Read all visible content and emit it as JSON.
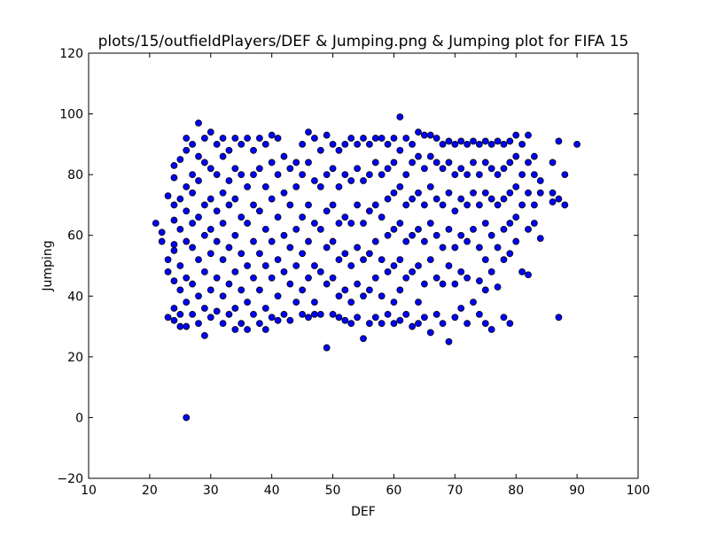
{
  "chart_data": {
    "type": "scatter",
    "title": "plots/15/outfieldPlayers/DEF & Jumping.png & Jumping plot for FIFA 15",
    "xlabel": "DEF",
    "ylabel": "Jumping",
    "xlim": [
      10,
      100
    ],
    "ylim": [
      -20,
      120
    ],
    "xticks": [
      10,
      20,
      30,
      40,
      50,
      60,
      70,
      80,
      90,
      100
    ],
    "yticks": [
      -20,
      0,
      20,
      40,
      60,
      80,
      100,
      120
    ],
    "grid": false,
    "legend": "none",
    "marker_color": "#0000ff",
    "marker_edge_color": "#000000",
    "points": [
      [
        21,
        64
      ],
      [
        22,
        61
      ],
      [
        22,
        58
      ],
      [
        23,
        73
      ],
      [
        23,
        52
      ],
      [
        23,
        48
      ],
      [
        23,
        33
      ],
      [
        24,
        83
      ],
      [
        24,
        79
      ],
      [
        24,
        70
      ],
      [
        24,
        65
      ],
      [
        24,
        57
      ],
      [
        24,
        55
      ],
      [
        24,
        45
      ],
      [
        24,
        36
      ],
      [
        24,
        32
      ],
      [
        25,
        85
      ],
      [
        25,
        72
      ],
      [
        25,
        62
      ],
      [
        25,
        50
      ],
      [
        25,
        42
      ],
      [
        25,
        34
      ],
      [
        25,
        30
      ],
      [
        26,
        92
      ],
      [
        26,
        88
      ],
      [
        26,
        76
      ],
      [
        26,
        68
      ],
      [
        26,
        58
      ],
      [
        26,
        46
      ],
      [
        26,
        38
      ],
      [
        26,
        30
      ],
      [
        26,
        0
      ],
      [
        27,
        90
      ],
      [
        27,
        80
      ],
      [
        27,
        74
      ],
      [
        27,
        64
      ],
      [
        27,
        56
      ],
      [
        27,
        44
      ],
      [
        27,
        34
      ],
      [
        28,
        97
      ],
      [
        28,
        86
      ],
      [
        28,
        78
      ],
      [
        28,
        66
      ],
      [
        28,
        52
      ],
      [
        28,
        40
      ],
      [
        28,
        31
      ],
      [
        29,
        92
      ],
      [
        29,
        84
      ],
      [
        29,
        70
      ],
      [
        29,
        60
      ],
      [
        29,
        48
      ],
      [
        29,
        36
      ],
      [
        29,
        27
      ],
      [
        30,
        94
      ],
      [
        30,
        82
      ],
      [
        30,
        72
      ],
      [
        30,
        62
      ],
      [
        30,
        54
      ],
      [
        30,
        42
      ],
      [
        30,
        33
      ],
      [
        31,
        90
      ],
      [
        31,
        80
      ],
      [
        31,
        68
      ],
      [
        31,
        58
      ],
      [
        31,
        46
      ],
      [
        31,
        35
      ],
      [
        32,
        92
      ],
      [
        32,
        86
      ],
      [
        32,
        74
      ],
      [
        32,
        64
      ],
      [
        32,
        52
      ],
      [
        32,
        40
      ],
      [
        32,
        31
      ],
      [
        33,
        88
      ],
      [
        33,
        78
      ],
      [
        33,
        70
      ],
      [
        33,
        56
      ],
      [
        33,
        44
      ],
      [
        33,
        34
      ],
      [
        34,
        92
      ],
      [
        34,
        82
      ],
      [
        34,
        72
      ],
      [
        34,
        60
      ],
      [
        34,
        48
      ],
      [
        34,
        36
      ],
      [
        34,
        29
      ],
      [
        35,
        90
      ],
      [
        35,
        80
      ],
      [
        35,
        66
      ],
      [
        35,
        54
      ],
      [
        35,
        42
      ],
      [
        35,
        31
      ],
      [
        36,
        92
      ],
      [
        36,
        76
      ],
      [
        36,
        64
      ],
      [
        36,
        50
      ],
      [
        36,
        38
      ],
      [
        36,
        29
      ],
      [
        37,
        88
      ],
      [
        37,
        80
      ],
      [
        37,
        70
      ],
      [
        37,
        58
      ],
      [
        37,
        46
      ],
      [
        37,
        34
      ],
      [
        38,
        92
      ],
      [
        38,
        82
      ],
      [
        38,
        68
      ],
      [
        38,
        54
      ],
      [
        38,
        42
      ],
      [
        38,
        31
      ],
      [
        39,
        90
      ],
      [
        39,
        76
      ],
      [
        39,
        62
      ],
      [
        39,
        50
      ],
      [
        39,
        36
      ],
      [
        39,
        29
      ],
      [
        40,
        93
      ],
      [
        40,
        84
      ],
      [
        40,
        72
      ],
      [
        40,
        58
      ],
      [
        40,
        46
      ],
      [
        40,
        33
      ],
      [
        41,
        92
      ],
      [
        41,
        80
      ],
      [
        41,
        66
      ],
      [
        41,
        52
      ],
      [
        41,
        40
      ],
      [
        41,
        32
      ],
      [
        42,
        86
      ],
      [
        42,
        74
      ],
      [
        42,
        60
      ],
      [
        42,
        48
      ],
      [
        42,
        34
      ],
      [
        43,
        82
      ],
      [
        43,
        70
      ],
      [
        43,
        56
      ],
      [
        43,
        44
      ],
      [
        43,
        32
      ],
      [
        44,
        84
      ],
      [
        44,
        76
      ],
      [
        44,
        62
      ],
      [
        44,
        50
      ],
      [
        44,
        38
      ],
      [
        45,
        90
      ],
      [
        45,
        80
      ],
      [
        45,
        66
      ],
      [
        45,
        54
      ],
      [
        45,
        42
      ],
      [
        45,
        34
      ],
      [
        46,
        94
      ],
      [
        46,
        84
      ],
      [
        46,
        70
      ],
      [
        46,
        58
      ],
      [
        46,
        46
      ],
      [
        46,
        33
      ],
      [
        47,
        92
      ],
      [
        47,
        78
      ],
      [
        47,
        64
      ],
      [
        47,
        50
      ],
      [
        47,
        38
      ],
      [
        47,
        34
      ],
      [
        48,
        88
      ],
      [
        48,
        76
      ],
      [
        48,
        62
      ],
      [
        48,
        48
      ],
      [
        48,
        34
      ],
      [
        49,
        93
      ],
      [
        49,
        80
      ],
      [
        49,
        68
      ],
      [
        49,
        56
      ],
      [
        49,
        44
      ],
      [
        49,
        23
      ],
      [
        50,
        90
      ],
      [
        50,
        82
      ],
      [
        50,
        70
      ],
      [
        50,
        58
      ],
      [
        50,
        46
      ],
      [
        50,
        34
      ],
      [
        51,
        88
      ],
      [
        51,
        76
      ],
      [
        51,
        64
      ],
      [
        51,
        52
      ],
      [
        51,
        40
      ],
      [
        51,
        33
      ],
      [
        52,
        90
      ],
      [
        52,
        80
      ],
      [
        52,
        66
      ],
      [
        52,
        54
      ],
      [
        52,
        42
      ],
      [
        52,
        32
      ],
      [
        53,
        92
      ],
      [
        53,
        78
      ],
      [
        53,
        64
      ],
      [
        53,
        50
      ],
      [
        53,
        38
      ],
      [
        53,
        31
      ],
      [
        54,
        90
      ],
      [
        54,
        82
      ],
      [
        54,
        70
      ],
      [
        54,
        56
      ],
      [
        54,
        44
      ],
      [
        54,
        33
      ],
      [
        55,
        92
      ],
      [
        55,
        78
      ],
      [
        55,
        64
      ],
      [
        55,
        52
      ],
      [
        55,
        40
      ],
      [
        55,
        26
      ],
      [
        56,
        90
      ],
      [
        56,
        80
      ],
      [
        56,
        68
      ],
      [
        56,
        54
      ],
      [
        56,
        42
      ],
      [
        56,
        31
      ],
      [
        57,
        92
      ],
      [
        57,
        84
      ],
      [
        57,
        70
      ],
      [
        57,
        58
      ],
      [
        57,
        46
      ],
      [
        57,
        33
      ],
      [
        58,
        92
      ],
      [
        58,
        80
      ],
      [
        58,
        66
      ],
      [
        58,
        52
      ],
      [
        58,
        40
      ],
      [
        58,
        31
      ],
      [
        59,
        90
      ],
      [
        59,
        82
      ],
      [
        59,
        72
      ],
      [
        59,
        60
      ],
      [
        59,
        48
      ],
      [
        59,
        34
      ],
      [
        60,
        92
      ],
      [
        60,
        84
      ],
      [
        60,
        74
      ],
      [
        60,
        62
      ],
      [
        60,
        50
      ],
      [
        60,
        38
      ],
      [
        60,
        31
      ],
      [
        61,
        99
      ],
      [
        61,
        88
      ],
      [
        61,
        76
      ],
      [
        61,
        64
      ],
      [
        61,
        52
      ],
      [
        61,
        42
      ],
      [
        61,
        32
      ],
      [
        62,
        92
      ],
      [
        62,
        80
      ],
      [
        62,
        70
      ],
      [
        62,
        58
      ],
      [
        62,
        46
      ],
      [
        62,
        34
      ],
      [
        63,
        90
      ],
      [
        63,
        84
      ],
      [
        63,
        72
      ],
      [
        63,
        60
      ],
      [
        63,
        48
      ],
      [
        63,
        30
      ],
      [
        64,
        94
      ],
      [
        64,
        86
      ],
      [
        64,
        74
      ],
      [
        64,
        62
      ],
      [
        64,
        50
      ],
      [
        64,
        38
      ],
      [
        64,
        31
      ],
      [
        65,
        93
      ],
      [
        65,
        82
      ],
      [
        65,
        70
      ],
      [
        65,
        58
      ],
      [
        65,
        44
      ],
      [
        65,
        33
      ],
      [
        66,
        93
      ],
      [
        66,
        86
      ],
      [
        66,
        76
      ],
      [
        66,
        64
      ],
      [
        66,
        52
      ],
      [
        66,
        28
      ],
      [
        67,
        92
      ],
      [
        67,
        84
      ],
      [
        67,
        72
      ],
      [
        67,
        60
      ],
      [
        67,
        46
      ],
      [
        67,
        34
      ],
      [
        68,
        90
      ],
      [
        68,
        82
      ],
      [
        68,
        70
      ],
      [
        68,
        56
      ],
      [
        68,
        44
      ],
      [
        68,
        31
      ],
      [
        69,
        91
      ],
      [
        69,
        84
      ],
      [
        69,
        74
      ],
      [
        69,
        62
      ],
      [
        69,
        50
      ],
      [
        69,
        25
      ],
      [
        70,
        90
      ],
      [
        70,
        80
      ],
      [
        70,
        68
      ],
      [
        70,
        56
      ],
      [
        70,
        44
      ],
      [
        70,
        33
      ],
      [
        71,
        91
      ],
      [
        71,
        82
      ],
      [
        71,
        72
      ],
      [
        71,
        60
      ],
      [
        71,
        48
      ],
      [
        71,
        36
      ],
      [
        72,
        90
      ],
      [
        72,
        80
      ],
      [
        72,
        70
      ],
      [
        72,
        58
      ],
      [
        72,
        46
      ],
      [
        72,
        31
      ],
      [
        73,
        91
      ],
      [
        73,
        84
      ],
      [
        73,
        74
      ],
      [
        73,
        62
      ],
      [
        73,
        38
      ],
      [
        74,
        90
      ],
      [
        74,
        80
      ],
      [
        74,
        70
      ],
      [
        74,
        56
      ],
      [
        74,
        45
      ],
      [
        74,
        34
      ],
      [
        75,
        91
      ],
      [
        75,
        84
      ],
      [
        75,
        74
      ],
      [
        75,
        64
      ],
      [
        75,
        52
      ],
      [
        75,
        42
      ],
      [
        75,
        31
      ],
      [
        76,
        90
      ],
      [
        76,
        82
      ],
      [
        76,
        72
      ],
      [
        76,
        60
      ],
      [
        76,
        48
      ],
      [
        76,
        29
      ],
      [
        77,
        91
      ],
      [
        77,
        80
      ],
      [
        77,
        70
      ],
      [
        77,
        56
      ],
      [
        77,
        43
      ],
      [
        78,
        90
      ],
      [
        78,
        82
      ],
      [
        78,
        72
      ],
      [
        78,
        62
      ],
      [
        78,
        52
      ],
      [
        78,
        33
      ],
      [
        79,
        91
      ],
      [
        79,
        84
      ],
      [
        79,
        74
      ],
      [
        79,
        64
      ],
      [
        79,
        54
      ],
      [
        79,
        31
      ],
      [
        80,
        93
      ],
      [
        80,
        86
      ],
      [
        80,
        76
      ],
      [
        80,
        66
      ],
      [
        80,
        58
      ],
      [
        81,
        90
      ],
      [
        81,
        80
      ],
      [
        81,
        70
      ],
      [
        81,
        48
      ],
      [
        82,
        93
      ],
      [
        82,
        84
      ],
      [
        82,
        74
      ],
      [
        82,
        62
      ],
      [
        82,
        47
      ],
      [
        83,
        86
      ],
      [
        83,
        80
      ],
      [
        83,
        70
      ],
      [
        83,
        64
      ],
      [
        84,
        78
      ],
      [
        84,
        74
      ],
      [
        84,
        59
      ],
      [
        86,
        84
      ],
      [
        86,
        74
      ],
      [
        86,
        71
      ],
      [
        87,
        91
      ],
      [
        87,
        72
      ],
      [
        87,
        33
      ],
      [
        88,
        80
      ],
      [
        88,
        70
      ],
      [
        90,
        90
      ]
    ]
  }
}
